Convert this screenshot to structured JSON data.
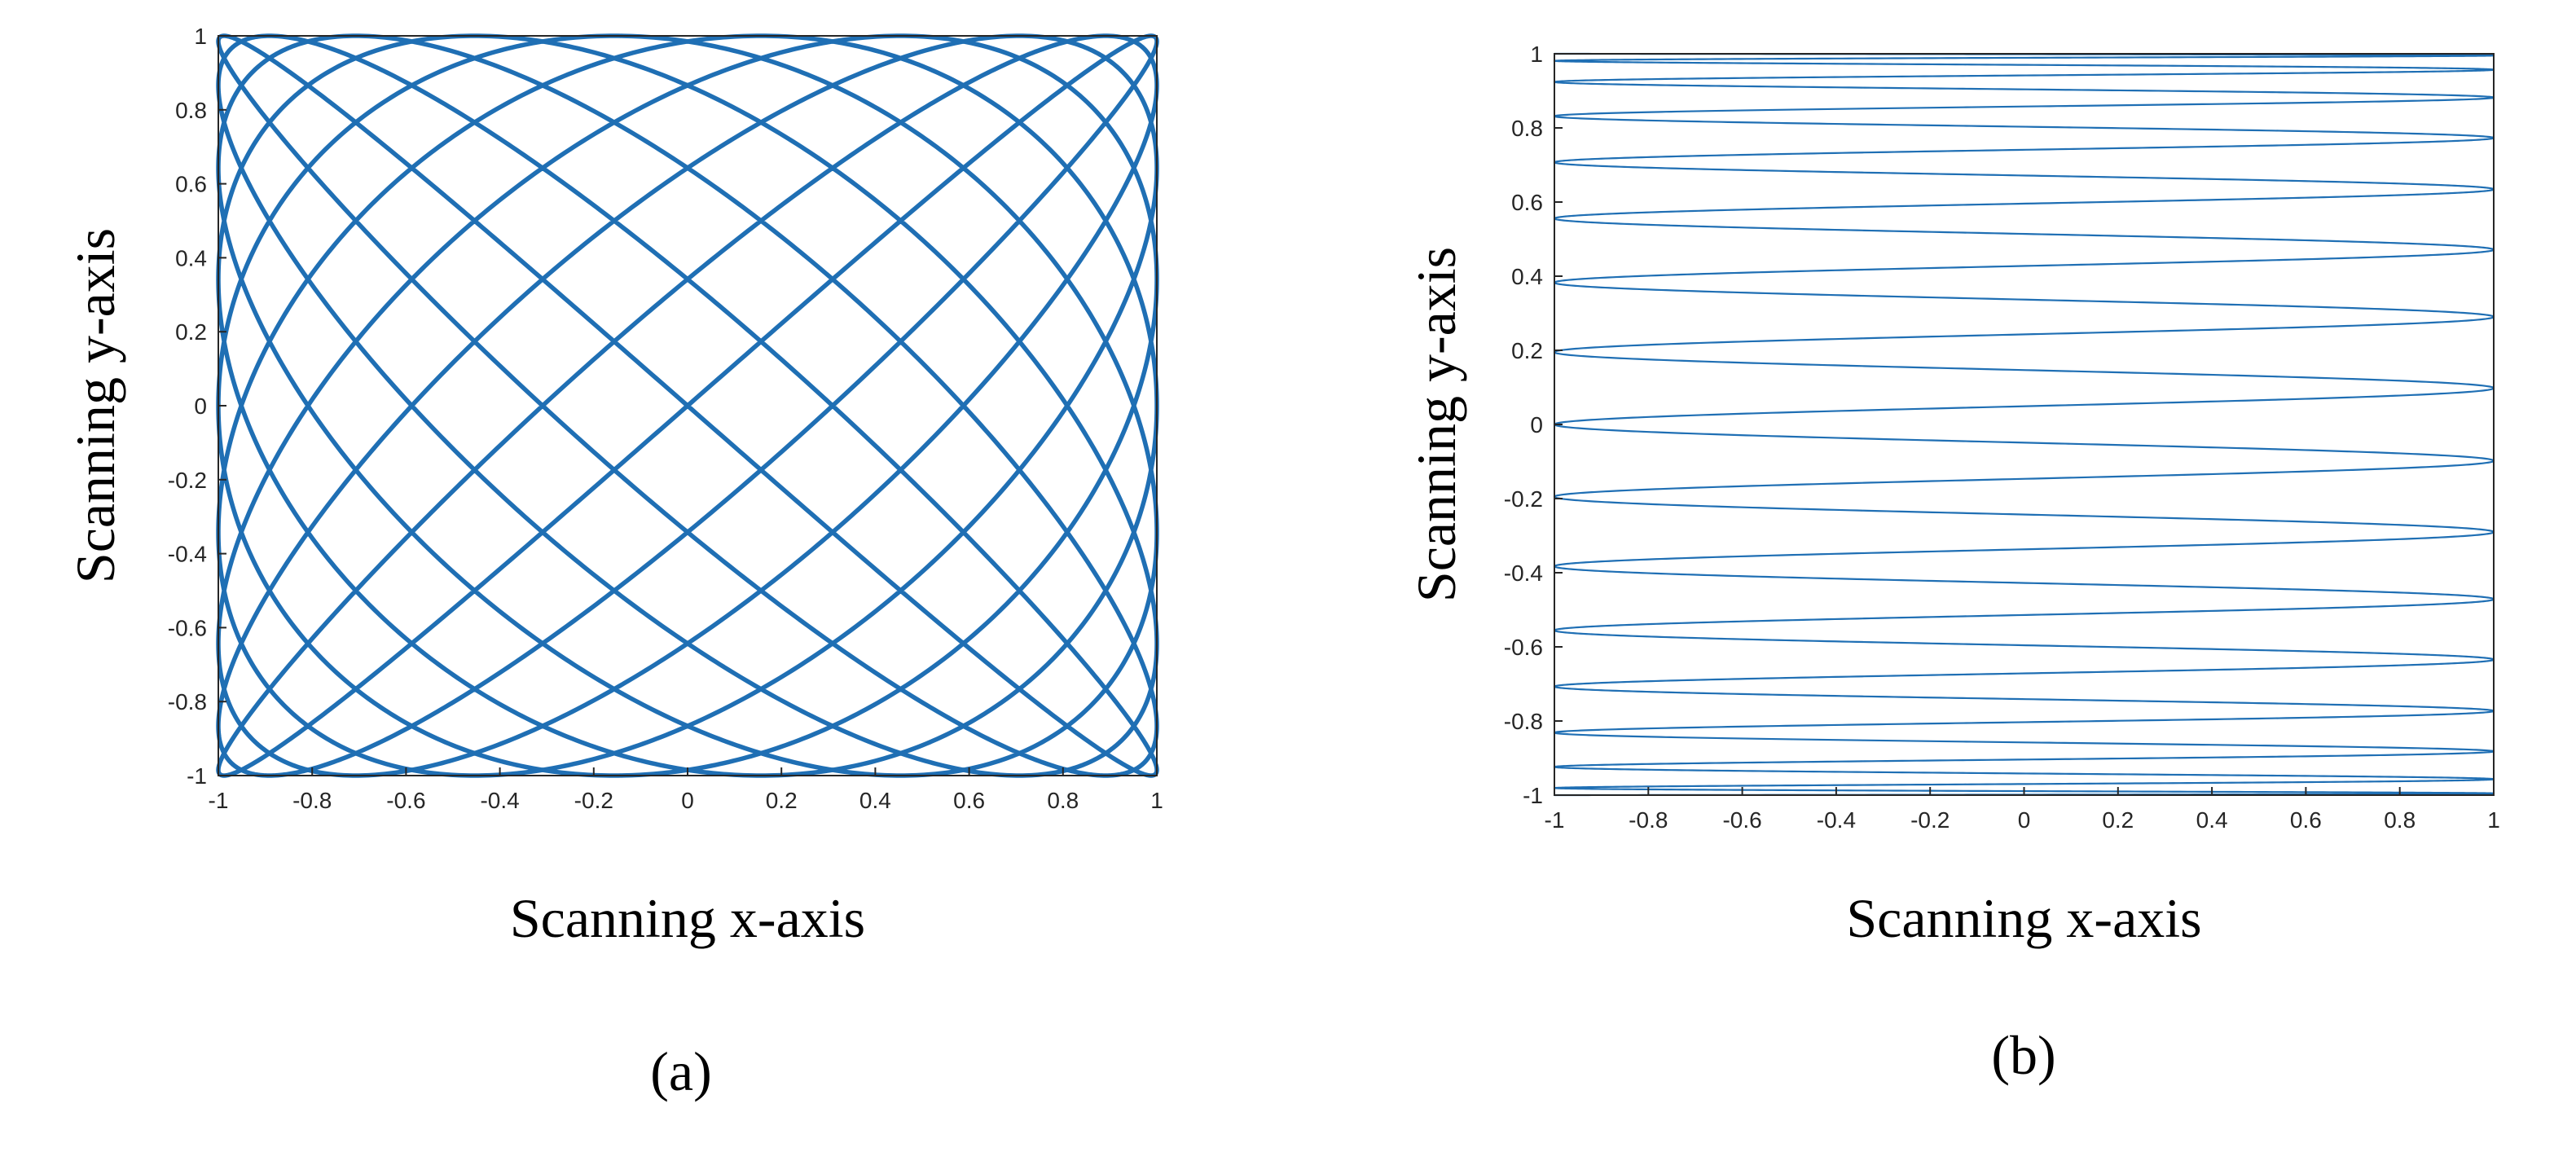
{
  "chart_data": [
    {
      "type": "line",
      "panel_label": "(a)",
      "title": "",
      "xlabel": "Scanning x-axis",
      "ylabel": "Scanning y-axis",
      "xlim": [
        -1,
        1
      ],
      "ylim": [
        -1,
        1
      ],
      "xticks": [
        "-1",
        "-0.8",
        "-0.6",
        "-0.4",
        "-0.2",
        "0",
        "0.2",
        "0.4",
        "0.6",
        "0.8",
        "1"
      ],
      "yticks": [
        "-1",
        "-0.8",
        "-0.6",
        "-0.4",
        "-0.2",
        "0",
        "0.2",
        "0.4",
        "0.6",
        "0.8",
        "1"
      ],
      "grid": false,
      "curve": "lissajous",
      "x_frequency": 9,
      "y_frequency": 10,
      "color": "#1f6fb4"
    },
    {
      "type": "line",
      "panel_label": "(b)",
      "title": "",
      "xlabel": "Scanning x-axis",
      "ylabel": "Scanning y-axis",
      "xlim": [
        -1,
        1
      ],
      "ylim": [
        -1,
        1
      ],
      "xticks": [
        "-1",
        "-0.8",
        "-0.6",
        "-0.4",
        "-0.2",
        "0",
        "0.2",
        "0.4",
        "0.6",
        "0.8",
        "1"
      ],
      "yticks": [
        "-1",
        "-0.8",
        "-0.6",
        "-0.4",
        "-0.2",
        "0",
        "0.2",
        "0.4",
        "0.6",
        "0.8",
        "1"
      ],
      "grid": false,
      "curve": "raster",
      "x_frequency": 16,
      "y_frequency": 0.5,
      "color": "#1f6fb4"
    }
  ]
}
